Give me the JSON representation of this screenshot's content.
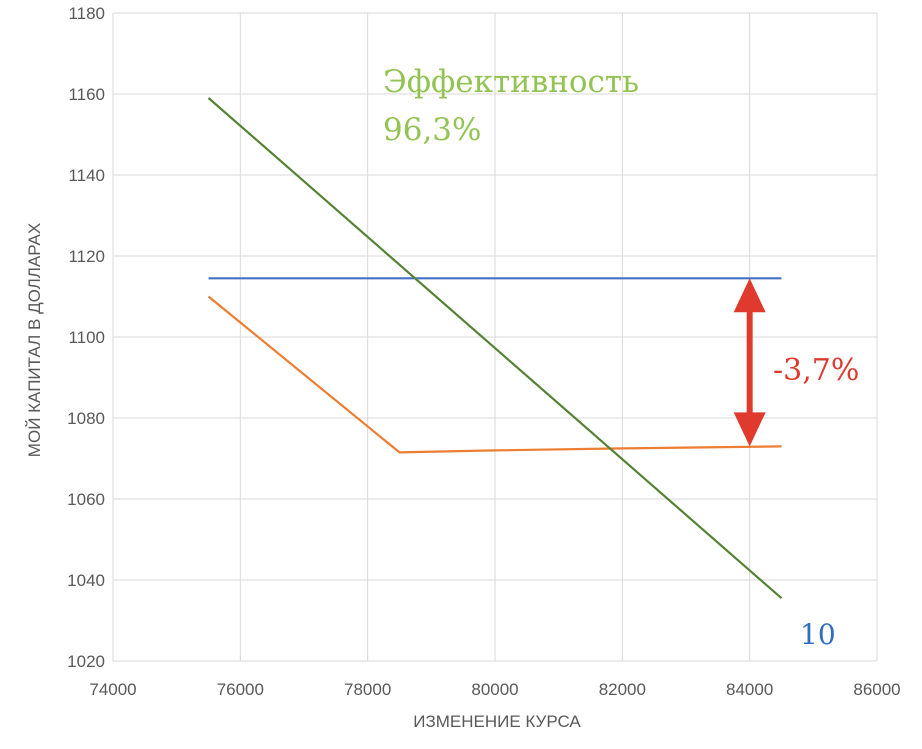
{
  "chart_data": {
    "type": "line",
    "title": "",
    "xlabel": "ИЗМЕНЕНИЕ КУРСА",
    "ylabel": "МОЙ КАПИТАЛ В ДОЛЛАРАХ",
    "xlim": [
      74000,
      86000
    ],
    "ylim": [
      1020,
      1180
    ],
    "xticks": [
      74000,
      76000,
      78000,
      80000,
      82000,
      84000,
      86000
    ],
    "yticks": [
      1020,
      1040,
      1060,
      1080,
      1100,
      1120,
      1140,
      1160,
      1180
    ],
    "grid": true,
    "series": [
      {
        "color": "#4472c4",
        "points": [
          [
            75500,
            1114.5
          ],
          [
            84500,
            1114.5
          ]
        ]
      },
      {
        "color": "#ed7d31",
        "points": [
          [
            75500,
            1110
          ],
          [
            78500,
            1071.5
          ],
          [
            80000,
            1072
          ],
          [
            82000,
            1072.5
          ],
          [
            84500,
            1073
          ]
        ]
      },
      {
        "color": "#548235",
        "points": [
          [
            75500,
            1159
          ],
          [
            84500,
            1035.5
          ]
        ]
      }
    ],
    "annotations": [
      {
        "text": "Эффективность",
        "color": "#92c353"
      },
      {
        "text": "96,3%",
        "color": "#92c353"
      },
      {
        "text": "-3,7%",
        "color": "#e03a2e"
      },
      {
        "text": "10",
        "color": "#2f6ec0"
      }
    ],
    "arrow": {
      "x": 84000,
      "y_from": 1114.5,
      "y_to": 1073,
      "color": "#e03a2e"
    }
  }
}
